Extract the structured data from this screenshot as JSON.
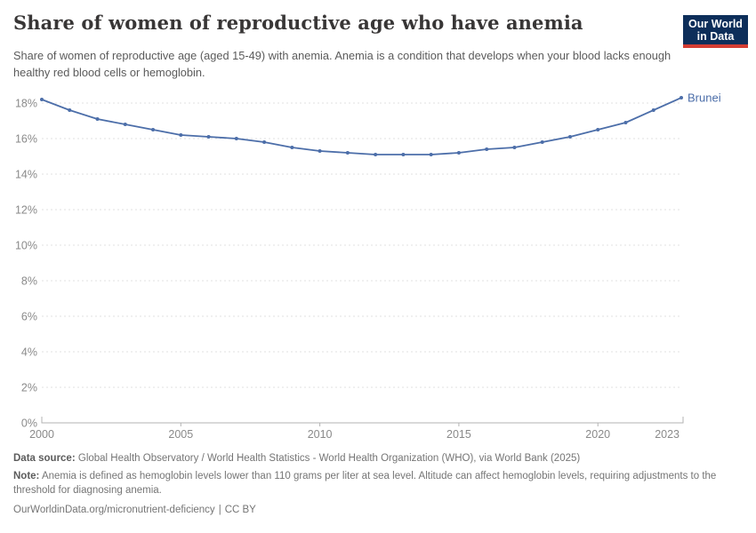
{
  "header": {
    "title": "Share of women of reproductive age who have anemia",
    "subtitle": "Share of women of reproductive age (aged 15-49) with anemia. Anemia is a condition that develops when your blood lacks enough healthy red blood cells or hemoglobin.",
    "logo": {
      "lines": [
        "Our World",
        "in Data"
      ],
      "bg_color": "#0d2e5a",
      "bar_color": "#d43d33"
    }
  },
  "chart_data": {
    "type": "line",
    "title": "Share of women of reproductive age who have anemia",
    "xlabel": "",
    "ylabel": "",
    "grid": "horizontal-dashed",
    "legend_position": "end-of-line-label",
    "xlim": [
      2000,
      2023
    ],
    "ylim": [
      0,
      18
    ],
    "x_ticks": [
      2000,
      2005,
      2010,
      2015,
      2020,
      2023
    ],
    "y_ticks": [
      0,
      2,
      4,
      6,
      8,
      10,
      12,
      14,
      16,
      18
    ],
    "y_tick_suffix": "%",
    "series": [
      {
        "name": "Brunei",
        "color": "#4c6ea9",
        "x": [
          2000,
          2001,
          2002,
          2003,
          2004,
          2005,
          2006,
          2007,
          2008,
          2009,
          2010,
          2011,
          2012,
          2013,
          2014,
          2015,
          2016,
          2017,
          2018,
          2019,
          2020,
          2021,
          2022,
          2023
        ],
        "values": [
          18.2,
          17.6,
          17.1,
          16.8,
          16.5,
          16.2,
          16.1,
          16.0,
          15.8,
          15.5,
          15.3,
          15.2,
          15.1,
          15.1,
          15.1,
          15.2,
          15.4,
          15.5,
          15.8,
          16.1,
          16.5,
          16.9,
          17.6,
          18.3
        ]
      }
    ],
    "colors": {
      "gridline": "#e0e0e0",
      "axis": "#b3b3b3",
      "tick_label": "#8a8a8a"
    }
  },
  "footer": {
    "data_source_label": "Data source:",
    "data_source": "Global Health Observatory / World Health Statistics - World Health Organization (WHO), via World Bank (2025)",
    "note_label": "Note:",
    "note": "Anemia is defined as hemoglobin levels lower than 110 grams per liter at sea level. Altitude can affect hemoglobin levels, requiring adjustments to the threshold for diagnosing anemia.",
    "url": "OurWorldinData.org/micronutrient-deficiency",
    "separator": "|",
    "license": "CC BY"
  }
}
